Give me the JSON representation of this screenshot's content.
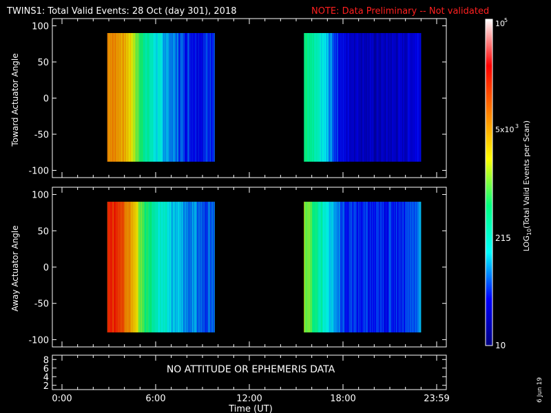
{
  "header": {
    "title": "TWINS1: Total Valid Events: 28 Oct (day 301), 2018",
    "note": "NOTE: Data Preliminary -- Not validated",
    "note_color": "#ff2020"
  },
  "colorbar": {
    "label": "LOG10(Total Valid Events per Scan)",
    "ticks": [
      "10",
      "215",
      "5x10^3",
      "10^5"
    ],
    "scale": "log",
    "range": [
      10,
      100000
    ],
    "colormap": [
      "#00007f",
      "#0000ff",
      "#00ffff",
      "#00ff80",
      "#ffff00",
      "#ff8000",
      "#ff0000",
      "#ffffff"
    ]
  },
  "footer": {
    "date_stamp": "6 Jun 19",
    "no_data_message": "NO ATTITUDE OR EPHEMERIS DATA"
  },
  "chart_data": [
    {
      "type": "heatmap",
      "panel": "top",
      "ylabel": "Toward Actuator Angle",
      "xlabel": "",
      "ylim": [
        -110,
        110
      ],
      "yticks": [
        -100,
        -50,
        0,
        50,
        100
      ],
      "xlim": [
        0,
        24
      ],
      "data_blocks": [
        {
          "x_start": 2.9,
          "x_end": 9.8,
          "y_start": -88,
          "y_end": 90
        },
        {
          "x_start": 15.5,
          "x_end": 23.0,
          "y_start": -88,
          "y_end": 90
        }
      ],
      "profile": [
        {
          "x": 2.9,
          "log10": 3.8
        },
        {
          "x": 3.5,
          "log10": 3.75
        },
        {
          "x": 4.0,
          "log10": 3.6
        },
        {
          "x": 4.5,
          "log10": 3.3
        },
        {
          "x": 5.0,
          "log10": 2.8
        },
        {
          "x": 5.5,
          "log10": 2.5
        },
        {
          "x": 6.0,
          "log10": 2.2
        },
        {
          "x": 7.0,
          "log10": 1.9
        },
        {
          "x": 8.0,
          "log10": 1.7
        },
        {
          "x": 9.0,
          "log10": 1.6
        },
        {
          "x": 9.8,
          "log10": 1.8
        },
        {
          "x": 15.5,
          "log10": 2.7
        },
        {
          "x": 16.0,
          "log10": 2.5
        },
        {
          "x": 17.0,
          "log10": 2.0
        },
        {
          "x": 18.0,
          "log10": 1.5
        },
        {
          "x": 20.0,
          "log10": 1.3
        },
        {
          "x": 22.0,
          "log10": 1.4
        },
        {
          "x": 23.0,
          "log10": 1.6
        }
      ]
    },
    {
      "type": "heatmap",
      "panel": "middle",
      "ylabel": "Away Actuator Angle",
      "xlabel": "",
      "ylim": [
        -110,
        110
      ],
      "yticks": [
        -100,
        -50,
        0,
        50,
        100
      ],
      "xlim": [
        0,
        24
      ],
      "data_blocks": [
        {
          "x_start": 2.9,
          "x_end": 9.8,
          "y_start": -90,
          "y_end": 90
        },
        {
          "x_start": 15.5,
          "x_end": 23.0,
          "y_start": -90,
          "y_end": 90
        }
      ],
      "profile": [
        {
          "x": 2.9,
          "log10": 4.3
        },
        {
          "x": 3.5,
          "log10": 4.25
        },
        {
          "x": 4.0,
          "log10": 4.0
        },
        {
          "x": 4.5,
          "log10": 3.6
        },
        {
          "x": 5.0,
          "log10": 3.0
        },
        {
          "x": 5.5,
          "log10": 2.7
        },
        {
          "x": 6.0,
          "log10": 2.4
        },
        {
          "x": 7.0,
          "log10": 2.1
        },
        {
          "x": 8.0,
          "log10": 1.9
        },
        {
          "x": 9.0,
          "log10": 1.8
        },
        {
          "x": 9.8,
          "log10": 1.9
        },
        {
          "x": 15.5,
          "log10": 3.2
        },
        {
          "x": 16.0,
          "log10": 2.8
        },
        {
          "x": 17.0,
          "log10": 2.2
        },
        {
          "x": 18.0,
          "log10": 1.7
        },
        {
          "x": 20.0,
          "log10": 1.6
        },
        {
          "x": 22.0,
          "log10": 1.7
        },
        {
          "x": 23.0,
          "log10": 1.9
        }
      ]
    },
    {
      "type": "line",
      "panel": "bottom",
      "ylabel": "",
      "xlabel": "Time (UT)",
      "ylim": [
        1,
        9
      ],
      "yticks": [
        2,
        4,
        6,
        8
      ],
      "xlim": [
        0,
        24
      ],
      "xticks": [
        "0:00",
        "6:00",
        "12:00",
        "18:00",
        "23:59"
      ],
      "series": []
    }
  ]
}
